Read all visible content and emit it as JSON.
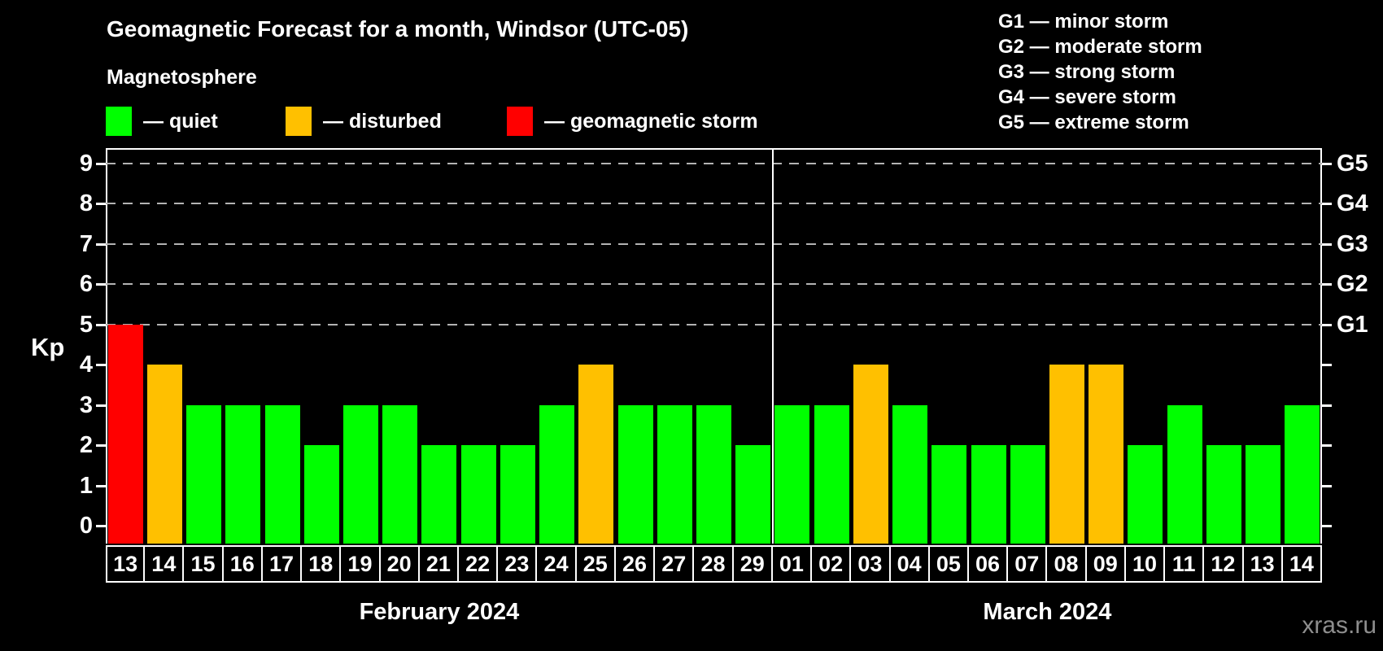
{
  "title": "Geomagnetic Forecast for a month, Windsor (UTC-05)",
  "subtitle": "Magnetosphere",
  "legend": {
    "items": [
      {
        "key": "quiet",
        "label": "— quiet",
        "color": "#00ff00"
      },
      {
        "key": "disturbed",
        "label": "— disturbed",
        "color": "#ffc000"
      },
      {
        "key": "storm",
        "label": "— geomagnetic storm",
        "color": "#ff0000"
      }
    ]
  },
  "g_scale_legend": [
    "G1 — minor storm",
    "G2 — moderate storm",
    "G3 — strong storm",
    "G4 — severe storm",
    "G5 — extreme storm"
  ],
  "axes": {
    "y_label": "Kp",
    "y_ticks": [
      0,
      1,
      2,
      3,
      4,
      5,
      6,
      7,
      8,
      9
    ],
    "gridline_kp": [
      5,
      6,
      7,
      8,
      9
    ],
    "right_labels": [
      {
        "kp": 5,
        "label": "G1"
      },
      {
        "kp": 6,
        "label": "G2"
      },
      {
        "kp": 7,
        "label": "G3"
      },
      {
        "kp": 8,
        "label": "G4"
      },
      {
        "kp": 9,
        "label": "G5"
      }
    ]
  },
  "chart_data": {
    "type": "bar",
    "title": "Geomagnetic Forecast for a month, Windsor (UTC-05)",
    "ylabel": "Kp",
    "ylim": [
      0,
      9.4
    ],
    "grid": "dashed horizontal at Kp 5-9 only",
    "level_colors": {
      "quiet": "#00ff00",
      "disturbed": "#ffc000",
      "storm": "#ff0000"
    },
    "months": [
      {
        "label": "February 2024",
        "days": [
          {
            "date": "13",
            "kp": 5,
            "level": "storm"
          },
          {
            "date": "14",
            "kp": 4,
            "level": "disturbed"
          },
          {
            "date": "15",
            "kp": 3,
            "level": "quiet"
          },
          {
            "date": "16",
            "kp": 3,
            "level": "quiet"
          },
          {
            "date": "17",
            "kp": 3,
            "level": "quiet"
          },
          {
            "date": "18",
            "kp": 2,
            "level": "quiet"
          },
          {
            "date": "19",
            "kp": 3,
            "level": "quiet"
          },
          {
            "date": "20",
            "kp": 3,
            "level": "quiet"
          },
          {
            "date": "21",
            "kp": 2,
            "level": "quiet"
          },
          {
            "date": "22",
            "kp": 2,
            "level": "quiet"
          },
          {
            "date": "23",
            "kp": 2,
            "level": "quiet"
          },
          {
            "date": "24",
            "kp": 3,
            "level": "quiet"
          },
          {
            "date": "25",
            "kp": 4,
            "level": "disturbed"
          },
          {
            "date": "26",
            "kp": 3,
            "level": "quiet"
          },
          {
            "date": "27",
            "kp": 3,
            "level": "quiet"
          },
          {
            "date": "28",
            "kp": 3,
            "level": "quiet"
          },
          {
            "date": "29",
            "kp": 2,
            "level": "quiet"
          }
        ]
      },
      {
        "label": "March 2024",
        "days": [
          {
            "date": "01",
            "kp": 3,
            "level": "quiet"
          },
          {
            "date": "02",
            "kp": 3,
            "level": "quiet"
          },
          {
            "date": "03",
            "kp": 4,
            "level": "disturbed"
          },
          {
            "date": "04",
            "kp": 3,
            "level": "quiet"
          },
          {
            "date": "05",
            "kp": 2,
            "level": "quiet"
          },
          {
            "date": "06",
            "kp": 2,
            "level": "quiet"
          },
          {
            "date": "07",
            "kp": 2,
            "level": "quiet"
          },
          {
            "date": "08",
            "kp": 4,
            "level": "disturbed"
          },
          {
            "date": "09",
            "kp": 4,
            "level": "disturbed"
          },
          {
            "date": "10",
            "kp": 2,
            "level": "quiet"
          },
          {
            "date": "11",
            "kp": 3,
            "level": "quiet"
          },
          {
            "date": "12",
            "kp": 2,
            "level": "quiet"
          },
          {
            "date": "13",
            "kp": 2,
            "level": "quiet"
          },
          {
            "date": "14",
            "kp": 3,
            "level": "quiet"
          }
        ]
      }
    ]
  },
  "watermark": "xras.ru"
}
